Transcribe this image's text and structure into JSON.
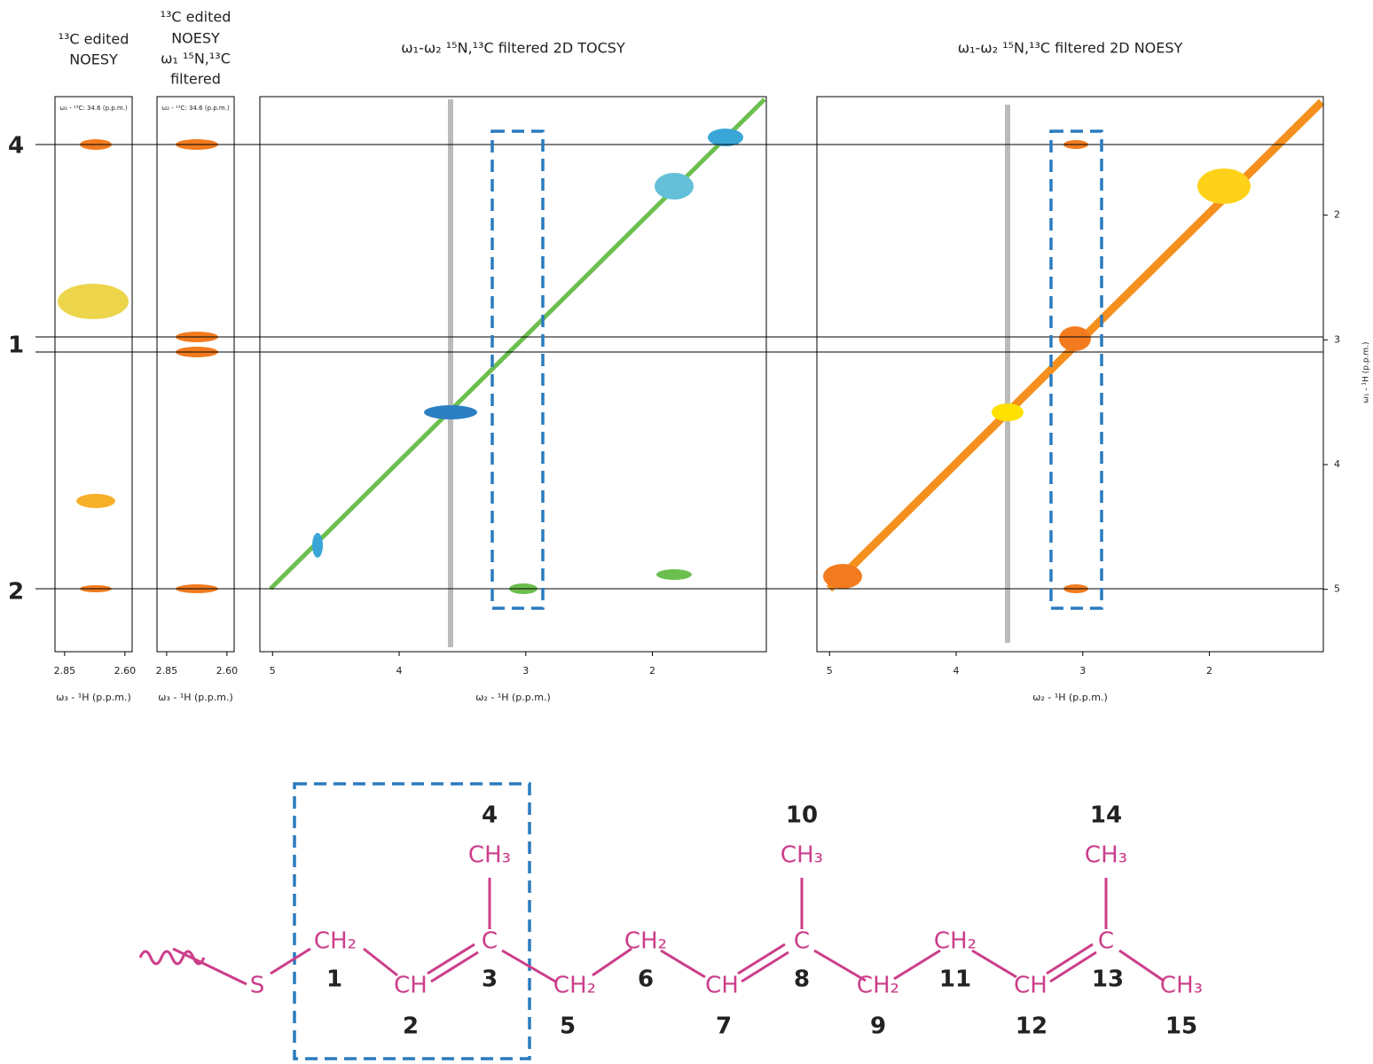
{
  "row_labels": [
    "4",
    "1",
    "2"
  ],
  "panels": [
    {
      "title": [
        "¹³C edited",
        "NOESY"
      ],
      "strip_label": "ω₂ - ¹³C: 34.6 (p.p.m.)",
      "x_label": "ω₃ - ¹H (p.p.m.)",
      "xlim": [
        2.89,
        2.57
      ],
      "xticks": [
        2.85,
        {
          "value": 2.6,
          "label": "2.60"
        }
      ]
    },
    {
      "title": [
        "¹³C edited",
        "NOESY",
        "ω₁ ¹⁵N,¹³C",
        "filtered"
      ],
      "strip_label": "ω₂ - ¹³C: 34.6 (p.p.m.)",
      "x_label": "ω₃ - ¹H (p.p.m.)",
      "xlim": [
        2.89,
        2.57
      ],
      "xticks": [
        2.85,
        {
          "value": 2.6,
          "label": "2.60"
        }
      ]
    },
    {
      "title": [
        "ω₁-ω₂ ¹⁵N,¹³C filtered 2D TOCSY"
      ],
      "x_label": "ω₂ - ¹H (p.p.m.)",
      "xlim": [
        5.1,
        1.1
      ],
      "xticks": [
        5,
        4,
        3,
        2
      ]
    },
    {
      "title": [
        "ω₁-ω₂ ¹⁵N,¹³C filtered 2D NOESY"
      ],
      "x_label": "ω₂ - ¹H (p.p.m.)",
      "xlim": [
        5.1,
        1.1
      ],
      "xticks": [
        5,
        4,
        3,
        2
      ]
    }
  ],
  "y_axis": {
    "label": "ω₁ - ¹H (p.p.m.)",
    "ylim": [
      1.05,
      5.5
    ],
    "yticks": [
      2,
      3,
      4,
      5
    ]
  },
  "molecule": {
    "groups": [
      "S",
      "CH₂",
      "CH",
      "C",
      "CH₃",
      "CH₂",
      "CH₂",
      "CH",
      "C",
      "CH₃",
      "CH₂",
      "CH₂",
      "CH",
      "C",
      "CH₃",
      "CH₃"
    ],
    "numbers": [
      "1",
      "2",
      "3",
      "4",
      "5",
      "6",
      "7",
      "8",
      "9",
      "10",
      "11",
      "12",
      "13",
      "14",
      "15"
    ]
  }
}
